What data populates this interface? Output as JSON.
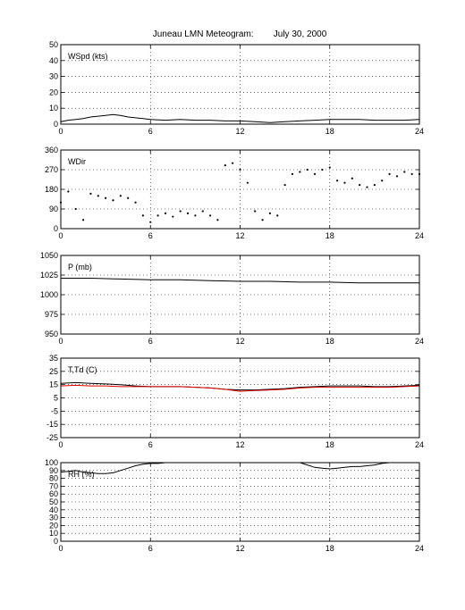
{
  "title": "Juneau LMN Meteogram:        July 30, 2000",
  "x_ticks": [
    "0",
    "6",
    "12",
    "18",
    "24"
  ],
  "chart_data": [
    {
      "type": "line",
      "label": "WSpd (kts)",
      "xlim": [
        0,
        24
      ],
      "ylim": [
        0,
        50
      ],
      "y_ticks": [
        "0",
        "10",
        "20",
        "30",
        "40",
        "50"
      ],
      "grid": true,
      "series": [
        {
          "color": "#000000",
          "x": [
            0,
            0.5,
            1,
            1.5,
            2,
            2.5,
            3,
            3.5,
            4,
            4.5,
            5,
            5.5,
            6,
            7,
            8,
            9,
            10,
            11,
            12,
            13,
            14,
            15,
            16,
            17,
            18,
            19,
            20,
            21,
            22,
            23,
            24
          ],
          "y": [
            1.5,
            2.5,
            3,
            3.5,
            4.5,
            5,
            5.5,
            6,
            5.5,
            4.5,
            4,
            3.5,
            3,
            2.5,
            3,
            2.5,
            2.5,
            2,
            2,
            1.5,
            1,
            1.5,
            2,
            2.5,
            3,
            3,
            3,
            2.5,
            2.5,
            2.5,
            3
          ]
        }
      ]
    },
    {
      "type": "scatter",
      "label": "WDir",
      "xlim": [
        0,
        24
      ],
      "ylim": [
        0,
        360
      ],
      "y_ticks": [
        "0",
        "90",
        "180",
        "270",
        "360"
      ],
      "grid": true,
      "series": [
        {
          "color": "#000000",
          "x": [
            0,
            0.5,
            1,
            1.5,
            2,
            2.5,
            3,
            3.5,
            4,
            4.5,
            5,
            5.5,
            6,
            6.5,
            7,
            7.5,
            8,
            8.5,
            9,
            9.5,
            10,
            10.5,
            11,
            11.5,
            12,
            12.5,
            13,
            13.5,
            14,
            14.5,
            15,
            15.5,
            16,
            16.5,
            17,
            17.5,
            18,
            18.5,
            19,
            19.5,
            20,
            20.5,
            21,
            21.5,
            22,
            22.5,
            23,
            23.5,
            24
          ],
          "y": [
            120,
            170,
            90,
            40,
            160,
            150,
            140,
            130,
            150,
            140,
            120,
            60,
            30,
            60,
            70,
            55,
            80,
            70,
            60,
            80,
            60,
            40,
            290,
            300,
            270,
            210,
            80,
            40,
            70,
            60,
            200,
            250,
            260,
            270,
            250,
            270,
            280,
            220,
            210,
            230,
            200,
            190,
            200,
            220,
            250,
            240,
            260,
            250,
            250
          ]
        }
      ]
    },
    {
      "type": "line",
      "label": "P (mb)",
      "xlim": [
        0,
        24
      ],
      "ylim": [
        950,
        1050
      ],
      "y_ticks": [
        "950",
        "975",
        "1000",
        "1025",
        "1050"
      ],
      "grid": true,
      "series": [
        {
          "color": "#000000",
          "x": [
            0,
            2,
            4,
            6,
            8,
            10,
            12,
            14,
            16,
            18,
            20,
            22,
            24
          ],
          "y": [
            1021,
            1021,
            1020,
            1019,
            1019,
            1018,
            1017,
            1017,
            1016,
            1016,
            1015,
            1015,
            1015
          ]
        }
      ]
    },
    {
      "type": "line",
      "label": "T,Td (C)",
      "xlim": [
        0,
        24
      ],
      "ylim": [
        -25,
        35
      ],
      "y_ticks": [
        "-25",
        "-15",
        "-5",
        "5",
        "15",
        "25",
        "35"
      ],
      "grid": true,
      "series": [
        {
          "color": "#000000",
          "x": [
            0,
            1,
            2,
            3,
            4,
            5,
            6,
            7,
            8,
            9,
            10,
            11,
            12,
            13,
            14,
            15,
            16,
            17,
            18,
            19,
            20,
            21,
            22,
            23,
            24
          ],
          "y": [
            16,
            16.5,
            16,
            15.5,
            15,
            14,
            13.5,
            13.5,
            13.5,
            13,
            12.5,
            11.5,
            11,
            11,
            11.5,
            12,
            13,
            13.5,
            14,
            14,
            14,
            13.5,
            13.5,
            14,
            14.5
          ]
        },
        {
          "color": "#dd0000",
          "x": [
            0,
            1,
            2,
            3,
            4,
            5,
            6,
            7,
            8,
            9,
            10,
            11,
            12,
            13,
            14,
            15,
            16,
            17,
            18,
            19,
            20,
            21,
            22,
            23,
            24
          ],
          "y": [
            14,
            14.5,
            14,
            14,
            13.5,
            13.5,
            13.5,
            13.5,
            13.5,
            13,
            12.5,
            11.5,
            10,
            10.5,
            11,
            11.5,
            12.5,
            13,
            13,
            13,
            13,
            13,
            13,
            13.5,
            14
          ]
        }
      ]
    },
    {
      "type": "line",
      "label": "RH (%)",
      "xlim": [
        0,
        24
      ],
      "ylim": [
        0,
        100
      ],
      "y_ticks": [
        "0",
        "10",
        "20",
        "30",
        "40",
        "50",
        "60",
        "70",
        "80",
        "90",
        "100"
      ],
      "grid": true,
      "series": [
        {
          "color": "#000000",
          "x": [
            0,
            0.5,
            1,
            1.5,
            2,
            2.5,
            3,
            3.5,
            4,
            4.5,
            5,
            5.5,
            6,
            6.5,
            7,
            8,
            9,
            10,
            11,
            12,
            13,
            14,
            15,
            16,
            16.5,
            17,
            17.5,
            18,
            18.5,
            19,
            19.5,
            20,
            20.5,
            21,
            21.5,
            22,
            23,
            24
          ],
          "y": [
            88,
            89,
            90,
            88,
            87,
            86,
            86,
            87,
            90,
            93,
            96,
            98,
            99,
            99,
            100,
            100,
            100,
            100,
            100,
            100,
            100,
            100,
            100,
            100,
            97,
            94,
            93,
            92,
            93,
            94,
            95,
            95,
            96,
            97,
            99,
            100,
            100,
            100
          ]
        }
      ]
    }
  ]
}
